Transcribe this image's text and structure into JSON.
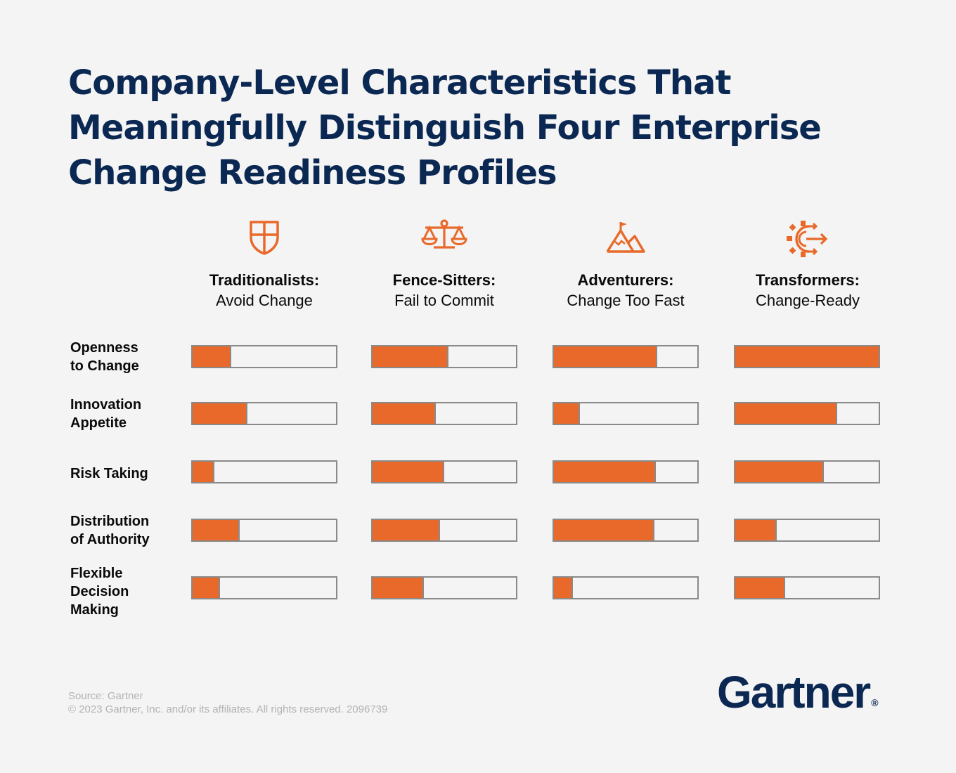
{
  "title_lines": [
    "Company-Level Characteristics That",
    "Meaningfully Distinguish Four Enterprise",
    "Change Readiness Profiles"
  ],
  "profiles": [
    {
      "name": "Traditionalists:",
      "desc": "Avoid Change",
      "icon": "shield-icon"
    },
    {
      "name": "Fence-Sitters:",
      "desc": "Fail to Commit",
      "icon": "scales-icon"
    },
    {
      "name": "Adventurers:",
      "desc": "Change Too Fast",
      "icon": "mountain-flag-icon"
    },
    {
      "name": "Transformers:",
      "desc": "Change-Ready",
      "icon": "gear-arrow-icon"
    }
  ],
  "rows": [
    {
      "label_lines": [
        "Openness",
        "to Change"
      ]
    },
    {
      "label_lines": [
        "Innovation",
        "Appetite"
      ]
    },
    {
      "label_lines": [
        "Risk Taking"
      ]
    },
    {
      "label_lines": [
        "Distribution",
        "of Authority"
      ]
    },
    {
      "label_lines": [
        "Flexible",
        "Decision",
        "Making"
      ]
    }
  ],
  "chart_data": {
    "type": "bar",
    "categories": [
      "Openness to Change",
      "Innovation Appetite",
      "Risk Taking",
      "Distribution of Authority",
      "Flexible Decision Making"
    ],
    "series": [
      {
        "name": "Traditionalists: Avoid Change",
        "values": [
          0.27,
          0.38,
          0.15,
          0.33,
          0.19
        ]
      },
      {
        "name": "Fence-Sitters: Fail to Commit",
        "values": [
          0.53,
          0.44,
          0.5,
          0.47,
          0.36
        ]
      },
      {
        "name": "Adventurers: Change Too Fast",
        "values": [
          0.72,
          0.18,
          0.71,
          0.7,
          0.13
        ]
      },
      {
        "name": "Transformers: Change-Ready",
        "values": [
          1.0,
          0.71,
          0.62,
          0.29,
          0.35
        ]
      }
    ],
    "ylim": [
      0,
      1
    ],
    "legend": "none",
    "grid": false
  },
  "colors": {
    "title": "#0b2853",
    "accent": "#e8692a",
    "bar_border": "#8a8a8a",
    "background": "#f4f4f4",
    "footer": "#b3b3b3"
  },
  "footer": {
    "source": "Source: Gartner",
    "copyright": "© 2023 Gartner, Inc. and/or its affiliates. All rights reserved. 2096739"
  },
  "logo": {
    "text": "Gartner",
    "mark": "®"
  }
}
